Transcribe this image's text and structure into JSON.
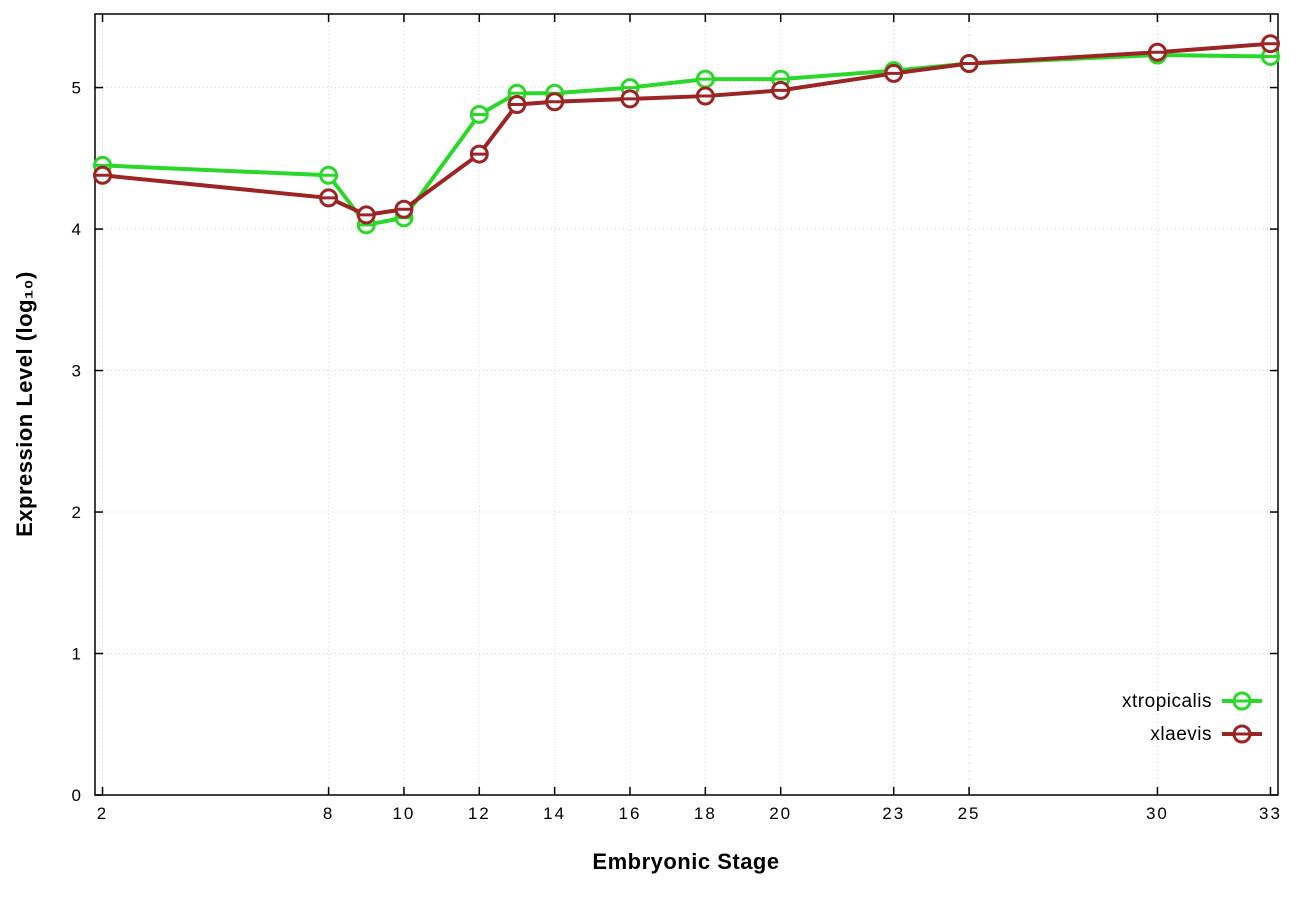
{
  "chart_data": {
    "type": "line",
    "title": "",
    "xlabel": "Embryonic Stage",
    "ylabel": "Expression Level (log₁₀)",
    "x": [
      2,
      8,
      9,
      10,
      12,
      13,
      14,
      16,
      18,
      20,
      23,
      25,
      30,
      33
    ],
    "x_tick_values": [
      2,
      8,
      10,
      12,
      14,
      16,
      18,
      20,
      23,
      25,
      30,
      33
    ],
    "x_tick_labels": [
      "2",
      "8",
      "10",
      "12",
      "14",
      "16",
      "18",
      "20",
      "23",
      "25",
      "30",
      "33"
    ],
    "y_tick_values": [
      0,
      1,
      2,
      3,
      4,
      5
    ],
    "y_tick_labels": [
      "0",
      "1",
      "2",
      "3",
      "4",
      "5"
    ],
    "xlim": [
      1.8,
      33.2
    ],
    "ylim": [
      0,
      5.52
    ],
    "grid": true,
    "legend_position": "inside-right-bottom",
    "series": [
      {
        "name": "xtropicalis",
        "color": "#2bd72b",
        "values": [
          4.45,
          4.38,
          4.03,
          4.08,
          4.81,
          4.96,
          4.96,
          5.0,
          5.06,
          5.06,
          5.12,
          5.17,
          5.23,
          5.22
        ]
      },
      {
        "name": "xlaevis",
        "color": "#9b2424",
        "values": [
          4.38,
          4.22,
          4.1,
          4.14,
          4.53,
          4.88,
          4.9,
          4.92,
          4.94,
          4.98,
          5.1,
          5.17,
          5.25,
          5.31
        ]
      }
    ]
  }
}
